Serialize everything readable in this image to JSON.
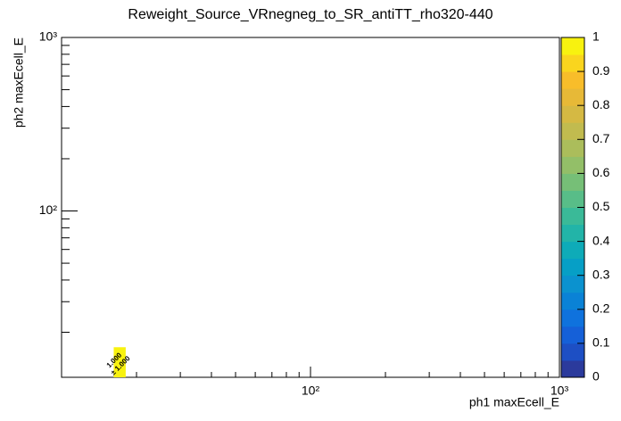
{
  "chart_data": {
    "type": "heatmap",
    "title": "Reweight_Source_VRnegneg_to_SR_antiTT_rho320-440",
    "x_label": "ph1 maxEcell_E",
    "y_label": "ph2 maxEcell_E",
    "log_x": true,
    "log_y": true,
    "xlim": [
      10,
      1000
    ],
    "ylim": [
      11,
      1000
    ],
    "xticks": [
      {
        "value": 100,
        "label": "10²"
      },
      {
        "value": 1000,
        "label": "10³"
      }
    ],
    "yticks": [
      {
        "value": 100,
        "label": "10²"
      },
      {
        "value": 1000,
        "label": "10³"
      }
    ],
    "xminorticks": [
      20,
      30,
      40,
      50,
      60,
      70,
      80,
      90,
      200,
      300,
      400,
      500,
      600,
      700,
      800,
      900
    ],
    "yminorticks": [
      20,
      30,
      40,
      50,
      60,
      70,
      80,
      90,
      200,
      300,
      400,
      500,
      600,
      700,
      800,
      900
    ],
    "cells": [
      {
        "x0": 16.2,
        "x1": 18.1,
        "y0": 11,
        "y1": 16.4,
        "value": 1,
        "error": 1,
        "value_label": "1.000",
        "error_label": "± 1.000"
      }
    ],
    "zlim": [
      0,
      1
    ],
    "zticks": [
      0,
      0.1,
      0.2,
      0.3,
      0.4,
      0.5,
      0.6,
      0.7,
      0.8,
      0.9,
      1
    ],
    "palette": [
      "#2b3a9c",
      "#1d4fc4",
      "#1560d8",
      "#0f72dd",
      "#0a82d6",
      "#0b92cf",
      "#069fc6",
      "#0eabb8",
      "#22b4a8",
      "#3aba98",
      "#58bd88",
      "#76bf77",
      "#93bf68",
      "#abbd5b",
      "#c1bb4f",
      "#d5b943",
      "#e7b937",
      "#f8bd2a",
      "#fad51e",
      "#f8f20f"
    ]
  }
}
